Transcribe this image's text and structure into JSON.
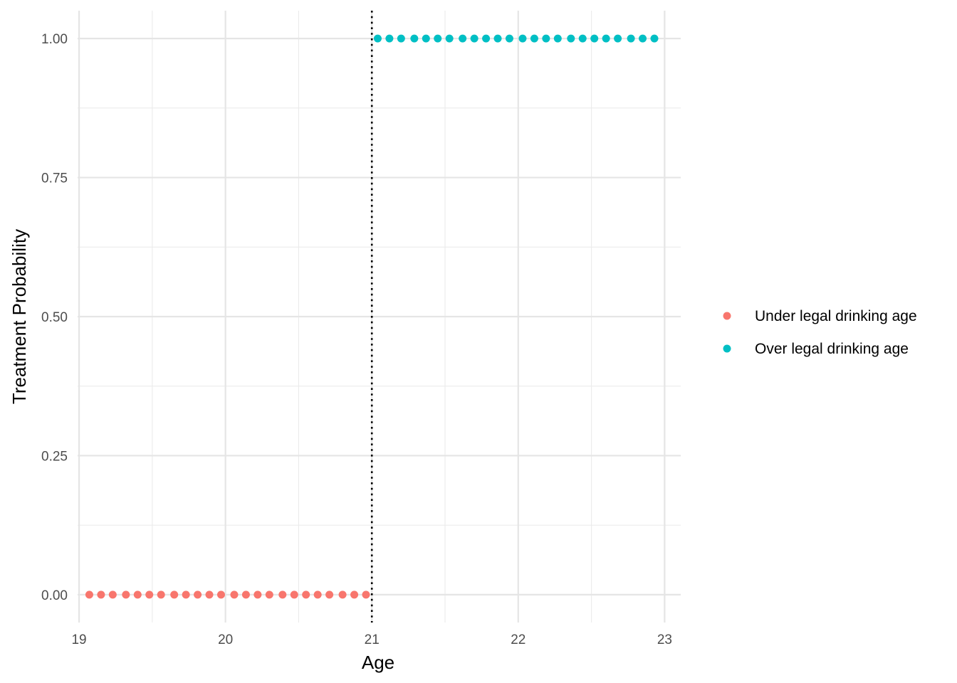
{
  "chart_data": {
    "type": "scatter",
    "title": "",
    "xlabel": "Age",
    "ylabel": "Treatment Probability",
    "xlim": [
      18.99,
      23.11
    ],
    "ylim": [
      -0.05,
      1.05
    ],
    "x_ticks": [
      {
        "value": 19,
        "label": "19"
      },
      {
        "value": 20,
        "label": "20"
      },
      {
        "value": 21,
        "label": "21"
      },
      {
        "value": 22,
        "label": "22"
      },
      {
        "value": 23,
        "label": "23"
      }
    ],
    "x_minor_ticks": [
      19.5,
      20.5,
      21.5,
      22.5
    ],
    "y_ticks": [
      {
        "value": 0,
        "label": "0.00"
      },
      {
        "value": 0.25,
        "label": "0.25"
      },
      {
        "value": 0.5,
        "label": "0.50"
      },
      {
        "value": 0.75,
        "label": "0.75"
      },
      {
        "value": 1,
        "label": "1.00"
      }
    ],
    "y_minor_ticks": [
      0.125,
      0.375,
      0.625,
      0.875
    ],
    "grid": true,
    "cutoff": {
      "x": 21,
      "style": "dotted",
      "color": "#000000"
    },
    "legend": {
      "position": "right"
    },
    "series": [
      {
        "name": "Under legal drinking age",
        "color": "#F8766D",
        "x": [
          19.07,
          19.15,
          19.23,
          19.32,
          19.4,
          19.48,
          19.56,
          19.65,
          19.73,
          19.81,
          19.89,
          19.97,
          20.06,
          20.14,
          20.22,
          20.3,
          20.39,
          20.47,
          20.55,
          20.63,
          20.71,
          20.8,
          20.88,
          20.96
        ],
        "y": [
          0,
          0,
          0,
          0,
          0,
          0,
          0,
          0,
          0,
          0,
          0,
          0,
          0,
          0,
          0,
          0,
          0,
          0,
          0,
          0,
          0,
          0,
          0,
          0
        ]
      },
      {
        "name": "Over legal drinking age",
        "color": "#00BFC4",
        "x": [
          21.04,
          21.12,
          21.2,
          21.29,
          21.37,
          21.45,
          21.53,
          21.62,
          21.7,
          21.78,
          21.86,
          21.94,
          22.03,
          22.11,
          22.19,
          22.27,
          22.36,
          22.44,
          22.52,
          22.6,
          22.68,
          22.77,
          22.85,
          22.93
        ],
        "y": [
          1,
          1,
          1,
          1,
          1,
          1,
          1,
          1,
          1,
          1,
          1,
          1,
          1,
          1,
          1,
          1,
          1,
          1,
          1,
          1,
          1,
          1,
          1,
          1
        ]
      }
    ]
  }
}
